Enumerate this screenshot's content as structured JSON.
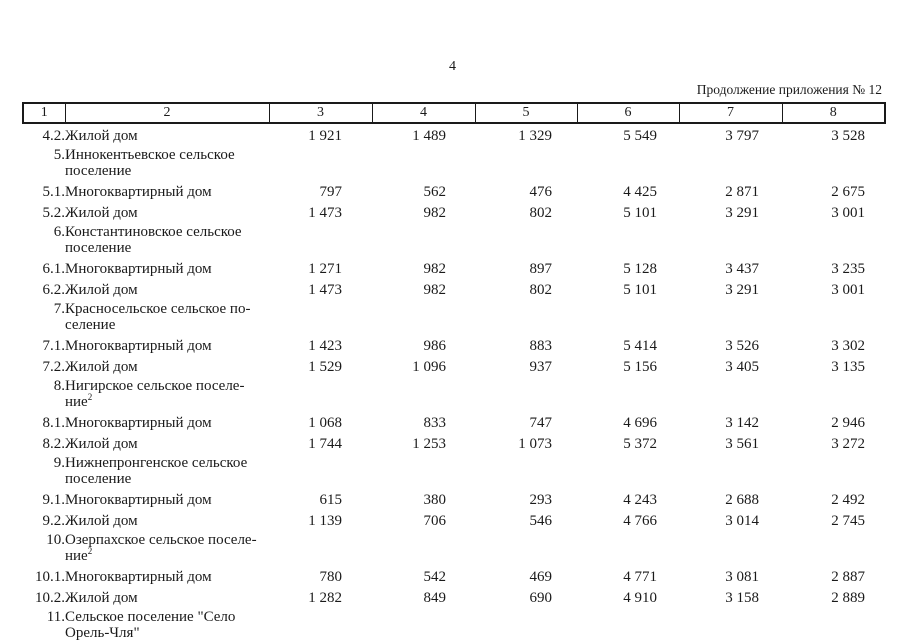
{
  "page": {
    "number": "4",
    "continuation": "Продолжение приложения № 12"
  },
  "table": {
    "column_headers": [
      "1",
      "2",
      "3",
      "4",
      "5",
      "6",
      "7",
      "8"
    ],
    "rows": [
      {
        "num": "4.2.",
        "name_lines": [
          "Жилой дом"
        ],
        "name_sup": "",
        "values": [
          "1 921",
          "1 489",
          "1 329",
          "5 549",
          "3 797",
          "3 528"
        ]
      },
      {
        "num": "5.",
        "name_lines": [
          "Иннокентьевское сельское",
          "поселение"
        ],
        "name_sup": "",
        "values": []
      },
      {
        "num": "5.1.",
        "name_lines": [
          "Многоквартирный дом"
        ],
        "name_sup": "",
        "values": [
          "797",
          "562",
          "476",
          "4 425",
          "2 871",
          "2 675"
        ]
      },
      {
        "num": "5.2.",
        "name_lines": [
          "Жилой дом"
        ],
        "name_sup": "",
        "values": [
          "1 473",
          "982",
          "802",
          "5 101",
          "3 291",
          "3 001"
        ]
      },
      {
        "num": "6.",
        "name_lines": [
          "Константиновское сельское",
          "поселение"
        ],
        "name_sup": "",
        "values": []
      },
      {
        "num": "6.1.",
        "name_lines": [
          "Многоквартирный дом"
        ],
        "name_sup": "",
        "values": [
          "1 271",
          "982",
          "897",
          "5 128",
          "3 437",
          "3 235"
        ]
      },
      {
        "num": "6.2.",
        "name_lines": [
          "Жилой дом"
        ],
        "name_sup": "",
        "values": [
          "1 473",
          "982",
          "802",
          "5 101",
          "3 291",
          "3 001"
        ]
      },
      {
        "num": "7.",
        "name_lines": [
          "Красносельское сельское по-",
          "селение"
        ],
        "name_sup": "",
        "values": []
      },
      {
        "num": "7.1.",
        "name_lines": [
          "Многоквартирный дом"
        ],
        "name_sup": "",
        "values": [
          "1 423",
          "986",
          "883",
          "5 414",
          "3 526",
          "3 302"
        ]
      },
      {
        "num": "7.2.",
        "name_lines": [
          "Жилой дом"
        ],
        "name_sup": "",
        "values": [
          "1 529",
          "1 096",
          "937",
          "5 156",
          "3 405",
          "3 135"
        ]
      },
      {
        "num": "8.",
        "name_lines": [
          "Нигирское сельское поселе-",
          "ние"
        ],
        "name_sup": "2",
        "values": []
      },
      {
        "num": "8.1.",
        "name_lines": [
          "Многоквартирный дом"
        ],
        "name_sup": "",
        "values": [
          "1 068",
          "833",
          "747",
          "4 696",
          "3 142",
          "2 946"
        ]
      },
      {
        "num": "8.2.",
        "name_lines": [
          "Жилой дом"
        ],
        "name_sup": "",
        "values": [
          "1 744",
          "1 253",
          "1 073",
          "5 372",
          "3 561",
          "3 272"
        ]
      },
      {
        "num": "9.",
        "name_lines": [
          "Нижнепронгенское сельское",
          "поселение"
        ],
        "name_sup": "",
        "values": []
      },
      {
        "num": "9.1.",
        "name_lines": [
          "Многоквартирный дом"
        ],
        "name_sup": "",
        "values": [
          "615",
          "380",
          "293",
          "4 243",
          "2 688",
          "2 492"
        ]
      },
      {
        "num": "9.2.",
        "name_lines": [
          "Жилой дом"
        ],
        "name_sup": "",
        "values": [
          "1 139",
          "706",
          "546",
          "4 766",
          "3 014",
          "2 745"
        ]
      },
      {
        "num": "10.",
        "name_lines": [
          "Озерпахское сельское поселе-",
          "ние"
        ],
        "name_sup": "2",
        "values": []
      },
      {
        "num": "10.1.",
        "name_lines": [
          "Многоквартирный дом"
        ],
        "name_sup": "",
        "values": [
          "780",
          "542",
          "469",
          "4 771",
          "3 081",
          "2 887"
        ]
      },
      {
        "num": "10.2.",
        "name_lines": [
          "Жилой дом"
        ],
        "name_sup": "",
        "values": [
          "1 282",
          "849",
          "690",
          "4 910",
          "3 158",
          "2 889"
        ]
      },
      {
        "num": "11.",
        "name_lines": [
          "Сельское поселение \"Село",
          "Орель-Чля\""
        ],
        "name_sup": "",
        "values": []
      }
    ]
  }
}
